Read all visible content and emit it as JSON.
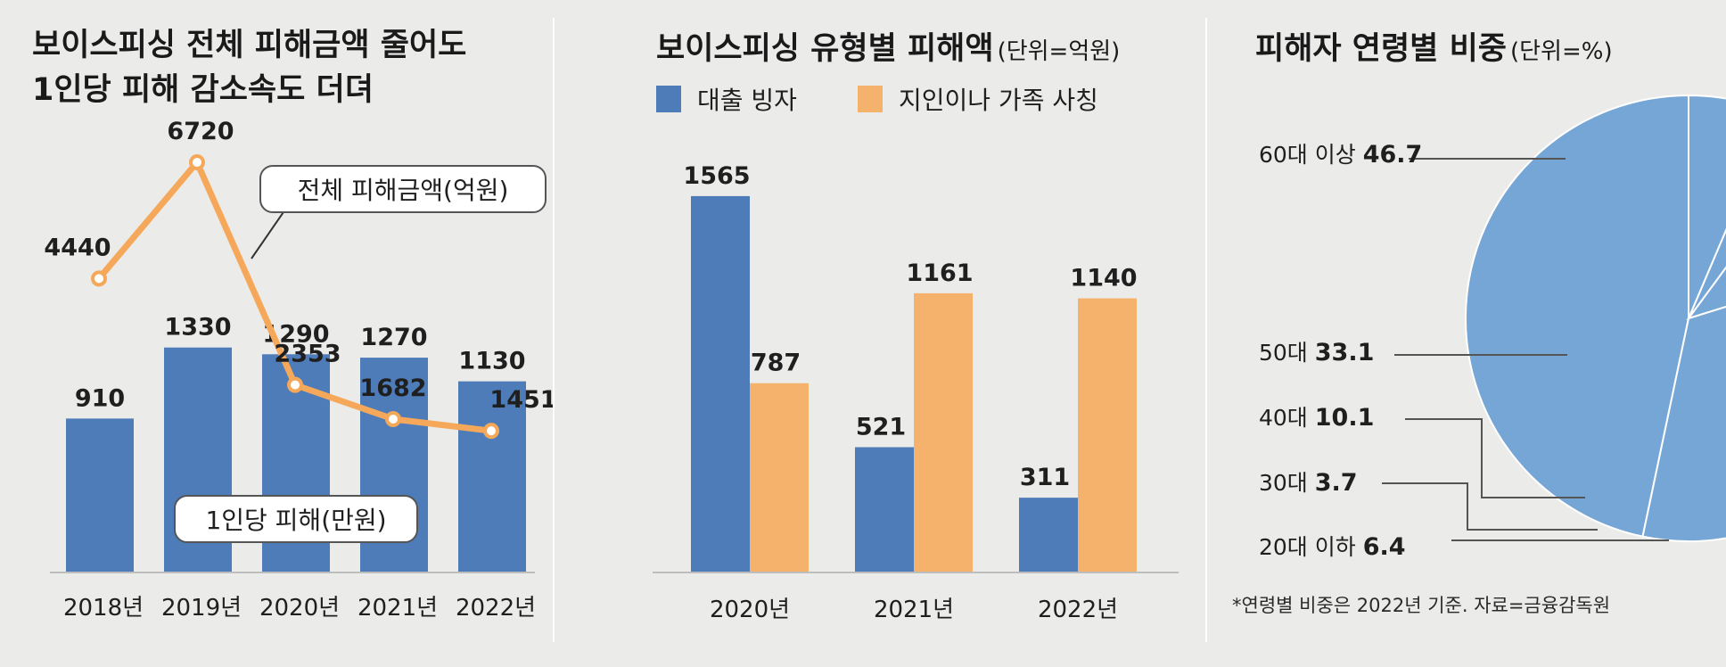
{
  "chart_data": [
    {
      "type": "bar",
      "title_lines": [
        "보이스피싱 전체 피해금액 줄어도",
        "1인당 피해 감소속도 더뎌"
      ],
      "categories": [
        "2018년",
        "2019년",
        "2020년",
        "2021년",
        "2022년"
      ],
      "series": [
        {
          "name": "1인당 피해(만원)",
          "type": "bar",
          "values": [
            910,
            1330,
            1290,
            1270,
            1130
          ],
          "color": "#4e7cb8"
        },
        {
          "name": "전체 피해금액(억원)",
          "type": "line",
          "values": [
            4440,
            6720,
            2353,
            1682,
            1451
          ],
          "color": "#f5a85a"
        }
      ]
    },
    {
      "type": "bar",
      "title": "보이스피싱 유형별 피해액",
      "title_unit": "(단위=억원)",
      "categories": [
        "2020년",
        "2021년",
        "2022년"
      ],
      "series": [
        {
          "name": "대출 빙자",
          "values": [
            1565,
            521,
            311
          ],
          "color": "#4e7cb8"
        },
        {
          "name": "지인이나 가족 사칭",
          "values": [
            787,
            1161,
            1140
          ],
          "color": "#f5b26d"
        }
      ]
    },
    {
      "type": "pie",
      "title": "피해자 연령별 비중",
      "title_unit": "(단위=%)",
      "slices": [
        {
          "label": "60대 이상",
          "value": 46.7
        },
        {
          "label": "50대",
          "value": 33.1
        },
        {
          "label": "40대",
          "value": 10.1
        },
        {
          "label": "30대",
          "value": 3.7
        },
        {
          "label": "20대 이하",
          "value": 6.4
        }
      ],
      "color": "#76a6d6",
      "note": "*연령별 비중은 2022년 기준. 자료=금융감독원"
    }
  ]
}
